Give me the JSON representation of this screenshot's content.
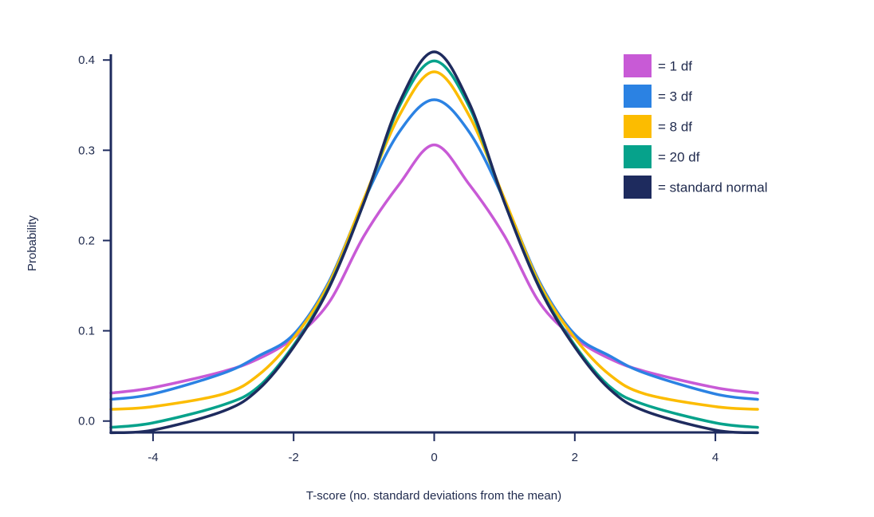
{
  "chart_data": {
    "type": "line",
    "title": "",
    "xlabel": "T-score (no. standard deviations from the mean)",
    "ylabel": "Probability",
    "xlim": [
      -4.6,
      4.6
    ],
    "ylim": [
      -0.0135,
      0.417
    ],
    "x_ticks": [
      -4,
      -2,
      0,
      2,
      4
    ],
    "x_tick_labels": [
      "-4",
      "-2",
      "0",
      "2",
      "4"
    ],
    "y_ticks": [
      0.0,
      0.1,
      0.2,
      0.3,
      0.4
    ],
    "y_tick_labels": [
      "0.0",
      "0.1",
      "0.2",
      "0.3",
      "0.4"
    ],
    "legend_position": "top-right",
    "series": [
      {
        "name": "= 1 df",
        "df": 1,
        "color": "#c85ad6",
        "x": [
          -4.6,
          -4,
          -3,
          -2.5,
          -2,
          -1.5,
          -1,
          -0.5,
          0,
          0.5,
          1,
          1.5,
          2,
          2.5,
          3,
          4,
          4.6
        ],
        "values": [
          0.031,
          0.037,
          0.055,
          0.069,
          0.092,
          0.131,
          0.205,
          0.262,
          0.306,
          0.262,
          0.205,
          0.131,
          0.092,
          0.069,
          0.055,
          0.037,
          0.031
        ]
      },
      {
        "name": "= 3 df",
        "df": 3,
        "color": "#2b82e3",
        "x": [
          -4.6,
          -4,
          -3,
          -2.5,
          -2,
          -1.5,
          -1,
          -0.5,
          0,
          0.5,
          1,
          1.5,
          2,
          2.5,
          3,
          4,
          4.6
        ],
        "values": [
          0.024,
          0.03,
          0.053,
          0.072,
          0.096,
          0.154,
          0.244,
          0.32,
          0.356,
          0.32,
          0.244,
          0.154,
          0.096,
          0.072,
          0.053,
          0.03,
          0.024
        ]
      },
      {
        "name": "= 8 df",
        "df": 8,
        "color": "#fcbc00",
        "x": [
          -4.6,
          -4,
          -3,
          -2.5,
          -2,
          -1.5,
          -1,
          -0.5,
          0,
          0.5,
          1,
          1.5,
          2,
          2.5,
          3,
          4,
          4.6
        ],
        "values": [
          0.013,
          0.016,
          0.03,
          0.051,
          0.092,
          0.152,
          0.246,
          0.338,
          0.387,
          0.338,
          0.246,
          0.152,
          0.092,
          0.051,
          0.03,
          0.016,
          0.013
        ]
      },
      {
        "name": "= 20 df",
        "df": 20,
        "color": "#06a28b",
        "x": [
          -4.6,
          -4,
          -3,
          -2.5,
          -2,
          -1.5,
          -1,
          -0.5,
          0,
          0.5,
          1,
          1.5,
          2,
          2.5,
          3,
          4,
          4.6
        ],
        "values": [
          -0.007,
          -0.002,
          0.018,
          0.038,
          0.084,
          0.148,
          0.242,
          0.348,
          0.399,
          0.348,
          0.242,
          0.148,
          0.084,
          0.038,
          0.018,
          -0.002,
          -0.007
        ]
      },
      {
        "name": "= standard normal",
        "df": "normal",
        "color": "#1e2b5e",
        "x": [
          -4.6,
          -4,
          -3,
          -2.5,
          -2,
          -1.5,
          -1,
          -0.5,
          0,
          0.5,
          1,
          1.5,
          2,
          2.5,
          3,
          4,
          4.6
        ],
        "values": [
          -0.013,
          -0.01,
          0.011,
          0.035,
          0.082,
          0.147,
          0.242,
          0.352,
          0.409,
          0.352,
          0.242,
          0.147,
          0.082,
          0.035,
          0.011,
          -0.01,
          -0.013
        ]
      }
    ]
  }
}
